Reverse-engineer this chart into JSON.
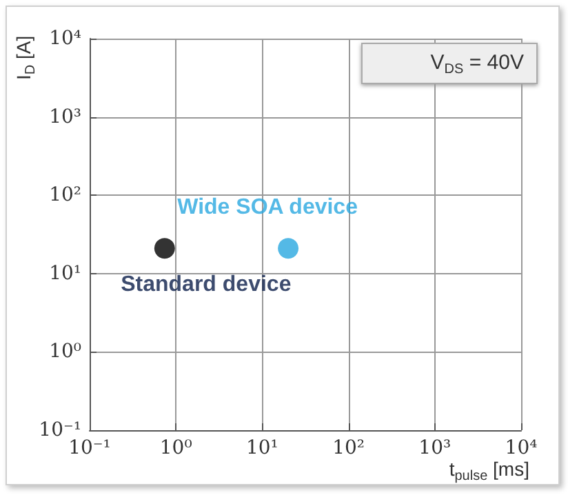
{
  "chart_data": {
    "type": "scatter",
    "xlabel": "t$_{pulse}$ [ms]",
    "ylabel": "I$_{D}$ [A]",
    "log": "xy",
    "grid": true,
    "marker": "circle",
    "xlim": [
      0.1,
      10000
    ],
    "ylim": [
      0.1,
      10000
    ],
    "xticks": [
      {
        "value": 0.1,
        "label": "10⁻¹"
      },
      {
        "value": 1,
        "label": "10⁰"
      },
      {
        "value": 10,
        "label": "10¹"
      },
      {
        "value": 100,
        "label": "10²"
      },
      {
        "value": 1000,
        "label": "10³"
      },
      {
        "value": 10000,
        "label": "10⁴"
      }
    ],
    "yticks": [
      {
        "value": 0.1,
        "label": "10⁻¹"
      },
      {
        "value": 1,
        "label": "10⁰"
      },
      {
        "value": 10,
        "label": "10¹"
      },
      {
        "value": 100,
        "label": "10²"
      },
      {
        "value": 1000,
        "label": "10³"
      },
      {
        "value": 10000,
        "label": "10⁴"
      }
    ],
    "series": [
      {
        "name": "Standard device",
        "color": "#000000",
        "x": [
          0.74
        ],
        "values": [
          21
        ]
      },
      {
        "name": "Wide SOA device",
        "color": "#29a8e0",
        "x": [
          20
        ],
        "values": [
          21
        ]
      }
    ],
    "annotations": [
      "V$_{DS}$ = 40V"
    ]
  }
}
